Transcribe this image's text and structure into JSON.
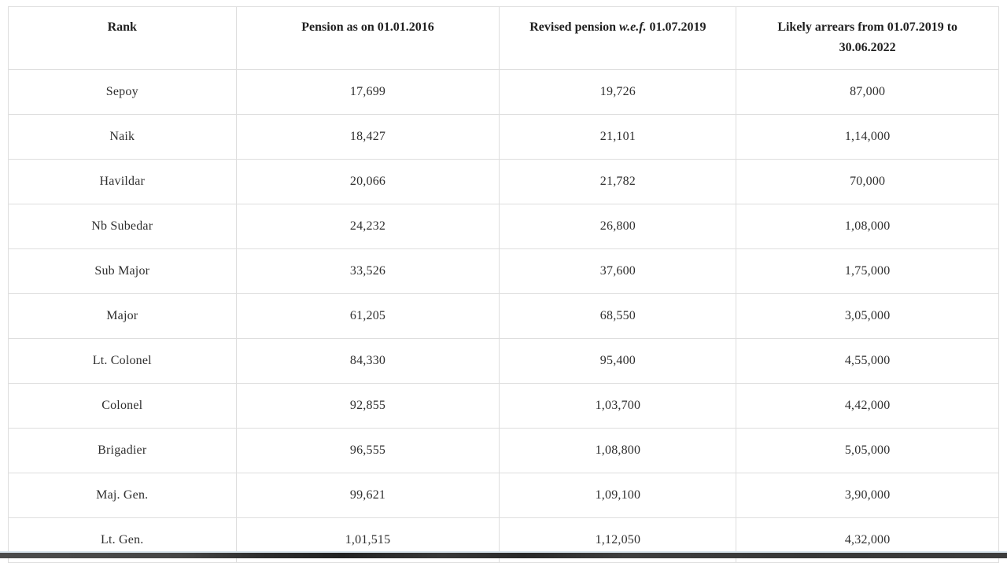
{
  "table": {
    "headers": {
      "rank": "Rank",
      "pension_2016": "Pension as on 01.01.2016",
      "revised_prefix": "Revised pension ",
      "revised_wef": "w.e.f.",
      "revised_date": " 01.07.2019",
      "arrears": "Likely arrears from 01.07.2019 to 30.06.2022"
    },
    "rows": [
      {
        "rank": "Sepoy",
        "pension_2016": "17,699",
        "revised_2019": "19,726",
        "arrears": "87,000"
      },
      {
        "rank": "Naik",
        "pension_2016": "18,427",
        "revised_2019": "21,101",
        "arrears": "1,14,000"
      },
      {
        "rank": "Havildar",
        "pension_2016": "20,066",
        "revised_2019": "21,782",
        "arrears": "70,000"
      },
      {
        "rank": "Nb Subedar",
        "pension_2016": "24,232",
        "revised_2019": "26,800",
        "arrears": "1,08,000"
      },
      {
        "rank": "Sub Major",
        "pension_2016": "33,526",
        "revised_2019": "37,600",
        "arrears": "1,75,000"
      },
      {
        "rank": "Major",
        "pension_2016": "61,205",
        "revised_2019": "68,550",
        "arrears": "3,05,000"
      },
      {
        "rank": "Lt. Colonel",
        "pension_2016": "84,330",
        "revised_2019": "95,400",
        "arrears": "4,55,000"
      },
      {
        "rank": "Colonel",
        "pension_2016": "92,855",
        "revised_2019": "1,03,700",
        "arrears": "4,42,000"
      },
      {
        "rank": "Brigadier",
        "pension_2016": "96,555",
        "revised_2019": "1,08,800",
        "arrears": "5,05,000"
      },
      {
        "rank": "Maj. Gen.",
        "pension_2016": "99,621",
        "revised_2019": "1,09,100",
        "arrears": "3,90,000"
      },
      {
        "rank": "Lt. Gen.",
        "pension_2016": "1,01,515",
        "revised_2019": "1,12,050",
        "arrears": "4,32,000"
      }
    ]
  },
  "chart_data": {
    "type": "table",
    "title": "",
    "columns": [
      "Rank",
      "Pension as on 01.01.2016",
      "Revised pension w.e.f. 01.07.2019",
      "Likely arrears from 01.07.2019 to 30.06.2022"
    ],
    "rows": [
      [
        "Sepoy",
        17699,
        19726,
        87000
      ],
      [
        "Naik",
        18427,
        21101,
        114000
      ],
      [
        "Havildar",
        20066,
        21782,
        70000
      ],
      [
        "Nb Subedar",
        24232,
        26800,
        108000
      ],
      [
        "Sub Major",
        33526,
        37600,
        175000
      ],
      [
        "Major",
        61205,
        68550,
        305000
      ],
      [
        "Lt. Colonel",
        84330,
        95400,
        455000
      ],
      [
        "Colonel",
        92855,
        103700,
        442000
      ],
      [
        "Brigadier",
        96555,
        108800,
        505000
      ],
      [
        "Maj. Gen.",
        99621,
        109100,
        390000
      ],
      [
        "Lt. Gen.",
        101515,
        112050,
        432000
      ]
    ],
    "number_format": "Indian digit grouping (e.g. 1,01,515)",
    "layout": {
      "grid": "full borders",
      "header_style": "bold, top-aligned",
      "cell_alignment": "center"
    }
  },
  "colors": {
    "background": "#ffffff",
    "border": "#dedede",
    "body_text": "#2f2f2f",
    "header_text": "#1f1f1f",
    "bottom_bar": "#383838",
    "bottom_bar_accent": "#d7e3eb"
  }
}
